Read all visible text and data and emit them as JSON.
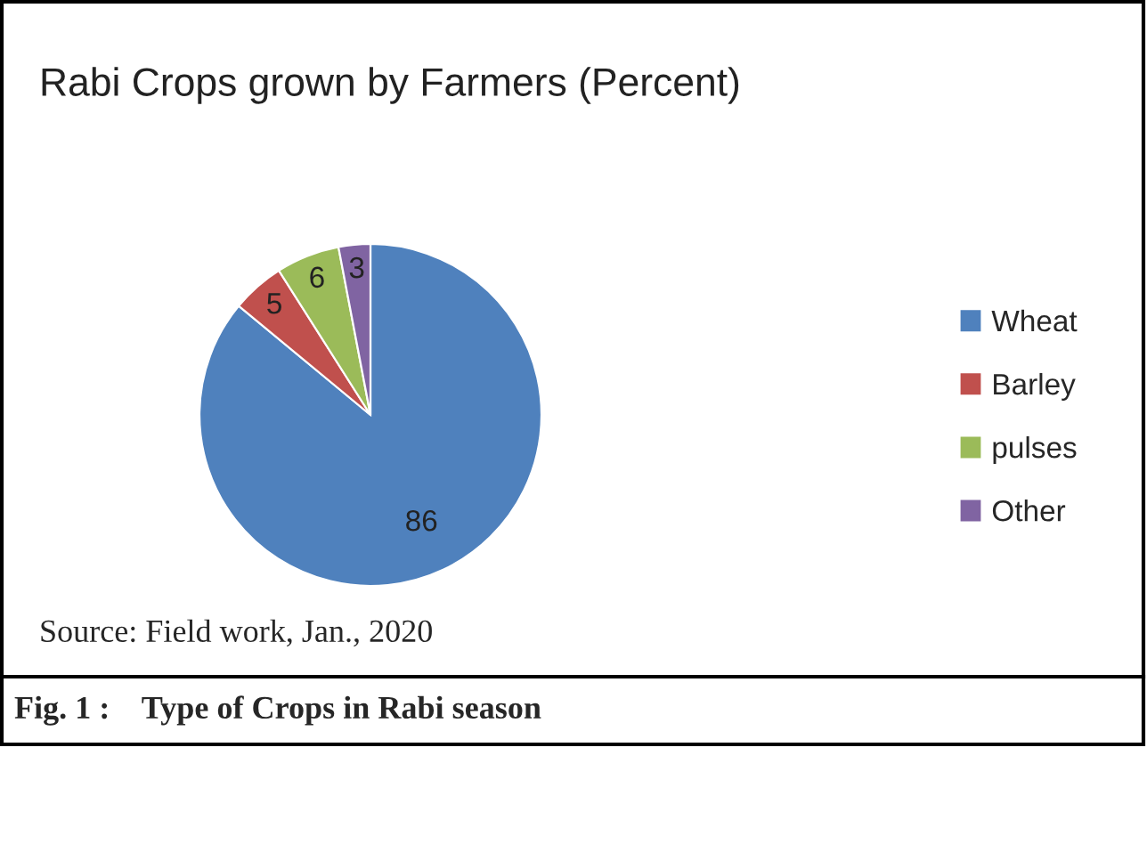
{
  "chart_data": {
    "type": "pie",
    "title": "Rabi Crops grown by Farmers (Percent)",
    "categories": [
      "Wheat",
      "Barley",
      "pulses",
      "Other"
    ],
    "values": [
      86,
      5,
      6,
      3
    ],
    "colors": [
      "#4f81bd",
      "#c0504d",
      "#9bbb59",
      "#8064a2"
    ],
    "data_labels": true,
    "legend": "right",
    "annotations": [
      "Source: Field work, Jan., 2020",
      "Fig. 1 :    Type of Crops in Rabi season"
    ]
  }
}
